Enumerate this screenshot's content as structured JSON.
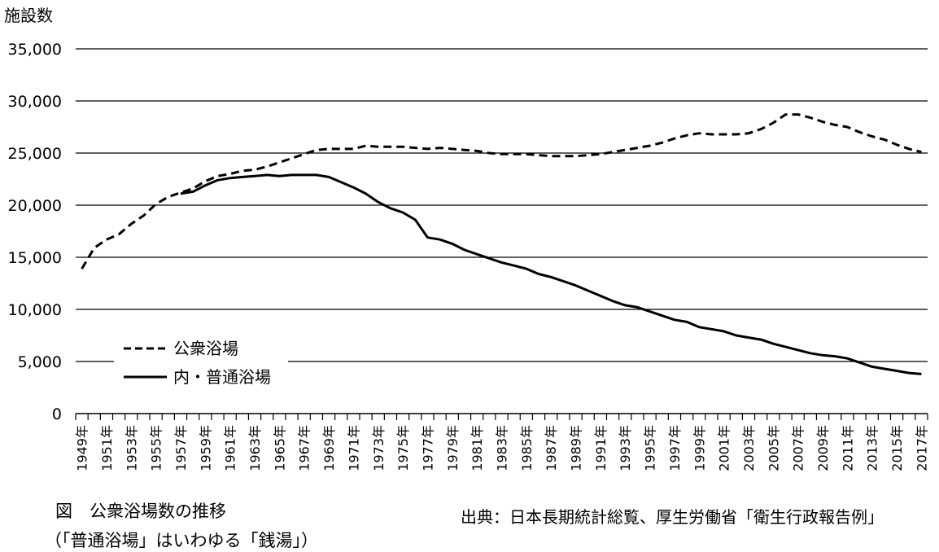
{
  "chart_data": {
    "type": "line",
    "ylabel": "施設数",
    "xlabel": "",
    "ylim": [
      0,
      35000
    ],
    "yticks": [
      0,
      5000,
      10000,
      15000,
      20000,
      25000,
      30000,
      35000
    ],
    "ytick_labels": [
      "0",
      "5,000",
      "10,000",
      "15,000",
      "20,000",
      "25,000",
      "30,000",
      "35,000"
    ],
    "x": [
      1949,
      1950,
      1951,
      1952,
      1953,
      1954,
      1955,
      1956,
      1957,
      1958,
      1959,
      1960,
      1961,
      1962,
      1963,
      1964,
      1965,
      1966,
      1967,
      1968,
      1969,
      1970,
      1971,
      1972,
      1973,
      1974,
      1975,
      1976,
      1977,
      1978,
      1979,
      1980,
      1981,
      1982,
      1983,
      1984,
      1985,
      1986,
      1987,
      1988,
      1989,
      1990,
      1991,
      1992,
      1993,
      1994,
      1995,
      1996,
      1997,
      1998,
      1999,
      2000,
      2001,
      2002,
      2003,
      2004,
      2005,
      2006,
      2007,
      2008,
      2009,
      2010,
      2011,
      2012,
      2013,
      2014,
      2015,
      2016,
      2017
    ],
    "xtick_labels": [
      "1949年",
      "1951年",
      "1953年",
      "1955年",
      "1957年",
      "1959年",
      "1961年",
      "1963年",
      "1965年",
      "1967年",
      "1969年",
      "1971年",
      "1973年",
      "1975年",
      "1977年",
      "1979年",
      "1981年",
      "1983年",
      "1985年",
      "1987年",
      "1989年",
      "1991年",
      "1993年",
      "1995年",
      "1997年",
      "1999年",
      "2001年",
      "2003年",
      "2005年",
      "2007年",
      "2009年",
      "2011年",
      "2013年",
      "2015年",
      "2017年"
    ],
    "grid": true,
    "legend_position": "lower-left",
    "series": [
      {
        "name": "公衆浴場",
        "style": "dashed",
        "values": [
          13900,
          15900,
          16700,
          17200,
          18200,
          19000,
          20100,
          20800,
          21200,
          21600,
          22300,
          22800,
          23000,
          23300,
          23400,
          23700,
          24100,
          24500,
          24900,
          25300,
          25400,
          25400,
          25400,
          25700,
          25600,
          25600,
          25600,
          25500,
          25400,
          25500,
          25400,
          25300,
          25200,
          25000,
          24900,
          24900,
          24900,
          24800,
          24700,
          24700,
          24700,
          24800,
          24900,
          25100,
          25300,
          25500,
          25700,
          26000,
          26400,
          26700,
          26900,
          26800,
          26800,
          26800,
          26900,
          27300,
          27900,
          28700,
          28700,
          28400,
          28000,
          27700,
          27500,
          27000,
          26600,
          26300,
          25800,
          25400,
          25100
        ]
      },
      {
        "name": "内・普通浴場",
        "style": "solid",
        "values": [
          null,
          null,
          null,
          null,
          null,
          null,
          null,
          null,
          21100,
          21300,
          21900,
          22400,
          22600,
          22700,
          22800,
          22900,
          22800,
          22900,
          22900,
          22900,
          22700,
          22200,
          21700,
          21100,
          20300,
          19700,
          19300,
          18600,
          16900,
          16700,
          16300,
          15700,
          15300,
          14900,
          14500,
          14200,
          13900,
          13400,
          13100,
          12700,
          12300,
          11800,
          11300,
          10800,
          10400,
          10200,
          9800,
          9400,
          9000,
          8800,
          8300,
          8100,
          7900,
          7500,
          7300,
          7100,
          6700,
          6400,
          6100,
          5800,
          5600,
          5500,
          5300,
          4900,
          4500,
          4300,
          4100,
          3900,
          3800
        ]
      }
    ]
  },
  "caption": {
    "title": "図　公衆浴場数の推移",
    "subtitle": "（「普通浴場」はいわゆる「銭湯」）",
    "source": "出典：日本長期統計総覧、厚生労働省「衛生行政報告例」"
  }
}
